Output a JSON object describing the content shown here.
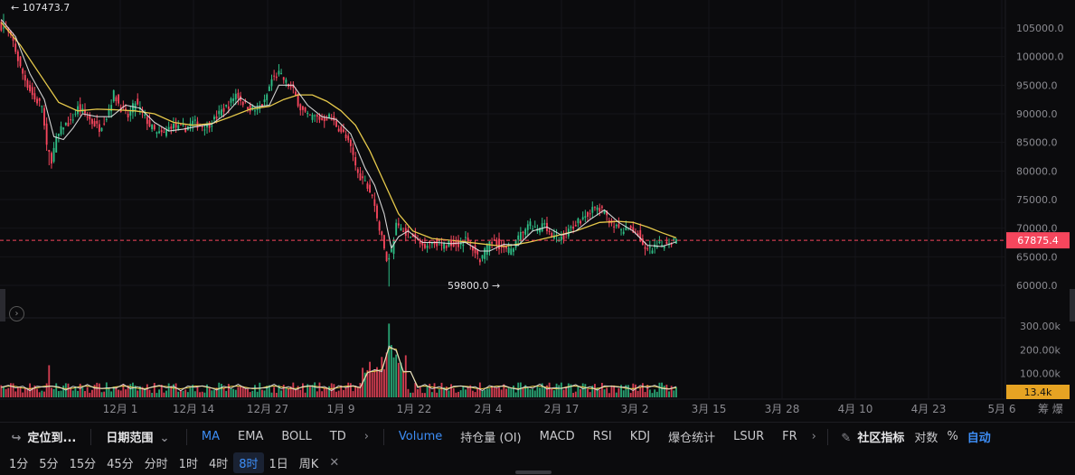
{
  "chart_data": [
    {
      "type": "candlestick",
      "series": [
        {
          "name": "",
          "candles": "price series read from the axes"
        }
      ],
      "price_axis": {
        "ticks": [
          "105000.0",
          "100000.0",
          "95000.0",
          "90000.0",
          "85000.0",
          "80000.0",
          "75000.0",
          "70000.0",
          "65000.0",
          "60000.0"
        ],
        "range": [
          57500,
          107500
        ]
      },
      "x_ticks": [
        "12月 1",
        "12月 14",
        "12月 27",
        "1月 9",
        "1月 22",
        "2月 4",
        "2月 17",
        "3月 2",
        "3月 15",
        "3月 28",
        "4月 10",
        "4月 23",
        "5月 6"
      ],
      "annotations": {
        "high_label": "← 107473.7",
        "low_label": "59800.0 →",
        "last_price": "67875.4"
      },
      "price_path": [
        [
          0,
          105500
        ],
        [
          3,
          104800
        ],
        [
          6,
          102500
        ],
        [
          9,
          98000
        ],
        [
          12,
          95000
        ],
        [
          15,
          92500
        ],
        [
          18,
          91500
        ],
        [
          20,
          84000
        ],
        [
          22,
          82000
        ],
        [
          24,
          85500
        ],
        [
          27,
          88000
        ],
        [
          30,
          88500
        ],
        [
          33,
          91000
        ],
        [
          36,
          90000
        ],
        [
          39,
          88500
        ],
        [
          42,
          87500
        ],
        [
          45,
          89500
        ],
        [
          48,
          93500
        ],
        [
          51,
          91000
        ],
        [
          54,
          89500
        ],
        [
          57,
          92000
        ],
        [
          60,
          90000
        ],
        [
          63,
          88000
        ],
        [
          66,
          86500
        ],
        [
          69,
          86500
        ],
        [
          72,
          88000
        ],
        [
          75,
          87500
        ],
        [
          78,
          87500
        ],
        [
          81,
          88500
        ],
        [
          84,
          88000
        ],
        [
          87,
          87800
        ],
        [
          90,
          89000
        ],
        [
          93,
          90500
        ],
        [
          96,
          91500
        ],
        [
          99,
          93500
        ],
        [
          102,
          92000
        ],
        [
          105,
          91000
        ],
        [
          108,
          90500
        ],
        [
          111,
          92000
        ],
        [
          114,
          96000
        ],
        [
          117,
          97000
        ],
        [
          120,
          95500
        ],
        [
          123,
          94000
        ],
        [
          126,
          91000
        ],
        [
          129,
          89500
        ],
        [
          132,
          89500
        ],
        [
          135,
          89000
        ],
        [
          138,
          89500
        ],
        [
          141,
          88000
        ],
        [
          144,
          86500
        ],
        [
          147,
          84000
        ],
        [
          150,
          79500
        ],
        [
          153,
          78000
        ],
        [
          156,
          75500
        ],
        [
          159,
          70000
        ],
        [
          162,
          64500
        ],
        [
          164,
          66000
        ],
        [
          166,
          70500
        ],
        [
          168,
          70000
        ],
        [
          171,
          69000
        ],
        [
          174,
          68000
        ],
        [
          177,
          67000
        ],
        [
          180,
          67500
        ],
        [
          183,
          67500
        ],
        [
          186,
          66800
        ],
        [
          189,
          67500
        ],
        [
          192,
          67200
        ],
        [
          195,
          68000
        ],
        [
          198,
          66500
        ],
        [
          201,
          64500
        ],
        [
          204,
          66500
        ],
        [
          207,
          68000
        ],
        [
          210,
          66500
        ],
        [
          213,
          66000
        ],
        [
          216,
          67500
        ],
        [
          219,
          69500
        ],
        [
          222,
          70500
        ],
        [
          225,
          69500
        ],
        [
          228,
          71000
        ],
        [
          231,
          68500
        ],
        [
          234,
          68000
        ],
        [
          237,
          69000
        ],
        [
          240,
          70500
        ],
        [
          243,
          71500
        ],
        [
          246,
          72500
        ],
        [
          249,
          73500
        ],
        [
          252,
          73000
        ],
        [
          255,
          71500
        ],
        [
          258,
          70000
        ],
        [
          261,
          69500
        ],
        [
          264,
          70000
        ],
        [
          267,
          69000
        ],
        [
          270,
          66000
        ],
        [
          273,
          66200
        ],
        [
          276,
          67000
        ],
        [
          279,
          67500
        ],
        [
          282,
          67875
        ]
      ],
      "ma_yellow_path": [
        [
          0,
          106000
        ],
        [
          8,
          102000
        ],
        [
          16,
          97000
        ],
        [
          24,
          92000
        ],
        [
          32,
          90500
        ],
        [
          40,
          90800
        ],
        [
          48,
          90700
        ],
        [
          56,
          90500
        ],
        [
          64,
          90000
        ],
        [
          72,
          88500
        ],
        [
          80,
          88000
        ],
        [
          88,
          88300
        ],
        [
          96,
          89500
        ],
        [
          104,
          90800
        ],
        [
          112,
          91300
        ],
        [
          118,
          92500
        ],
        [
          124,
          93300
        ],
        [
          130,
          93300
        ],
        [
          136,
          92200
        ],
        [
          142,
          90500
        ],
        [
          148,
          88000
        ],
        [
          154,
          83500
        ],
        [
          160,
          78000
        ],
        [
          166,
          72500
        ],
        [
          172,
          69500
        ],
        [
          180,
          68200
        ],
        [
          190,
          67800
        ],
        [
          200,
          67300
        ],
        [
          210,
          66800
        ],
        [
          220,
          67500
        ],
        [
          230,
          68500
        ],
        [
          240,
          69500
        ],
        [
          250,
          71000
        ],
        [
          258,
          71200
        ],
        [
          264,
          71000
        ],
        [
          270,
          70200
        ],
        [
          276,
          69200
        ],
        [
          282,
          68300
        ]
      ],
      "ma_white_path": [
        [
          0,
          106500
        ],
        [
          6,
          103500
        ],
        [
          12,
          97000
        ],
        [
          18,
          92500
        ],
        [
          22,
          86000
        ],
        [
          26,
          85500
        ],
        [
          30,
          87500
        ],
        [
          34,
          90000
        ],
        [
          40,
          89500
        ],
        [
          46,
          89500
        ],
        [
          52,
          91500
        ],
        [
          58,
          91000
        ],
        [
          64,
          88500
        ],
        [
          70,
          87000
        ],
        [
          76,
          87300
        ],
        [
          82,
          87800
        ],
        [
          88,
          88200
        ],
        [
          94,
          90000
        ],
        [
          100,
          92800
        ],
        [
          106,
          91200
        ],
        [
          112,
          91500
        ],
        [
          116,
          95000
        ],
        [
          122,
          95000
        ],
        [
          128,
          91500
        ],
        [
          134,
          89500
        ],
        [
          140,
          89000
        ],
        [
          146,
          86500
        ],
        [
          152,
          80500
        ],
        [
          156,
          77500
        ],
        [
          160,
          72500
        ],
        [
          163,
          66500
        ],
        [
          166,
          68500
        ],
        [
          170,
          69500
        ],
        [
          176,
          67500
        ],
        [
          182,
          67500
        ],
        [
          188,
          67300
        ],
        [
          194,
          67500
        ],
        [
          200,
          66000
        ],
        [
          204,
          66000
        ],
        [
          210,
          67200
        ],
        [
          216,
          67000
        ],
        [
          222,
          69500
        ],
        [
          228,
          70200
        ],
        [
          234,
          68800
        ],
        [
          240,
          69500
        ],
        [
          246,
          71500
        ],
        [
          252,
          73200
        ],
        [
          258,
          71000
        ],
        [
          264,
          69500
        ],
        [
          270,
          67000
        ],
        [
          276,
          66800
        ],
        [
          282,
          67600
        ]
      ]
    },
    {
      "type": "bar",
      "title": "Volume",
      "y_ticks": [
        "300.00k",
        "200.00k",
        "100.00k"
      ],
      "last_volume": "13.4k"
    }
  ],
  "axis": {
    "high_label": "← 107473.7",
    "low_label": "59800.0 →",
    "last_price": "67875.4",
    "last_volume": "13.4k",
    "extra_right": "筹  爆"
  },
  "colors": {
    "up": "#2ebd85",
    "down": "#f6465d",
    "ma_yellow": "#e6c94b",
    "ma_white": "#e8e8e8",
    "last_price_tag": "#f6465d",
    "volume_tag": "#e6a323",
    "accent": "#3d8df5"
  },
  "toolbar": {
    "locate": "定位到...",
    "date_range": "日期范围",
    "indicators_main": [
      "MA",
      "EMA",
      "BOLL",
      "TD"
    ],
    "indicators_sub": [
      "Volume",
      "持仓量 (OI)",
      "MACD",
      "RSI",
      "KDJ",
      "爆仓统计",
      "LSUR",
      "FR"
    ],
    "community": "社区指标",
    "log": "对数",
    "percent": "%",
    "auto": "自动"
  },
  "intervals": [
    "1分",
    "5分",
    "15分",
    "45分",
    "分时",
    "1时",
    "4时",
    "8时",
    "1日",
    "周K"
  ],
  "active_interval": "8时"
}
